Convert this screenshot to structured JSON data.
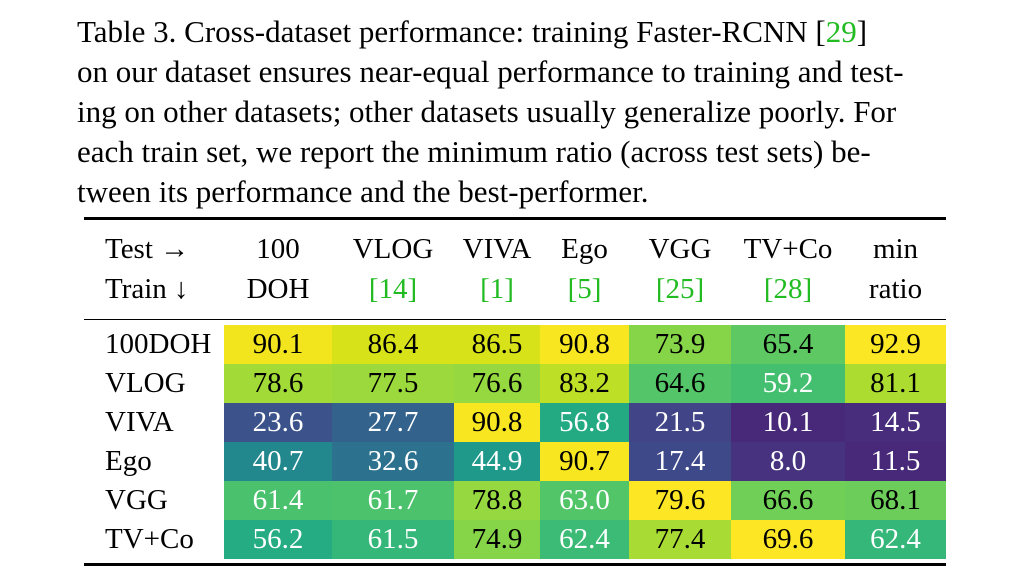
{
  "caption": {
    "lines": [
      [
        "Table 3. Cross-dataset performance:  training Faster-RCNN [",
        "29",
        "]"
      ],
      [
        "on our dataset ensures near-equal performance to training and test-"
      ],
      [
        "ing on other datasets; other datasets usually generalize poorly. For"
      ],
      [
        "each train set, we report the minimum ratio (across test sets) be-"
      ],
      [
        "tween its performance and the best-performer."
      ]
    ]
  },
  "table": {
    "corner_top": "Test →",
    "corner_bottom": "Train ↓",
    "columns": [
      {
        "top": "100",
        "bottom": "DOH",
        "ref": ""
      },
      {
        "top": "VLOG",
        "bottom": "",
        "ref": "14"
      },
      {
        "top": "VIVA",
        "bottom": "",
        "ref": "1"
      },
      {
        "top": "Ego",
        "bottom": "",
        "ref": "5"
      },
      {
        "top": "VGG",
        "bottom": "",
        "ref": "25"
      },
      {
        "top": "TV+Co",
        "bottom": "",
        "ref": "28"
      },
      {
        "top": "min",
        "bottom": "ratio",
        "ref": ""
      }
    ],
    "rows": [
      {
        "label": "100DOH",
        "values": [
          "90.1",
          "86.4",
          "86.5",
          "90.8",
          "73.9",
          "65.4",
          "92.9"
        ],
        "colors": [
          "#f2e51d",
          "#d8e219",
          "#d8e219",
          "#f7e620",
          "#86d549",
          "#5ec962",
          "#fbe723"
        ]
      },
      {
        "label": "VLOG",
        "values": [
          "78.6",
          "77.5",
          "76.6",
          "83.2",
          "64.6",
          "59.2",
          "81.1"
        ],
        "colors": [
          "#a2da37",
          "#9bd93c",
          "#95d840",
          "#bddf26",
          "#54c568",
          "#44bf70",
          "#addc30"
        ]
      },
      {
        "label": "VIVA",
        "values": [
          "23.6",
          "27.7",
          "90.8",
          "56.8",
          "21.5",
          "10.1",
          "14.5"
        ],
        "colors": [
          "#3b528b",
          "#33638d",
          "#f7e620",
          "#24aa83",
          "#414487",
          "#482878",
          "#472d7b"
        ]
      },
      {
        "label": "Ego",
        "values": [
          "40.7",
          "32.6",
          "44.9",
          "90.7",
          "17.4",
          "8.0",
          "11.5"
        ],
        "colors": [
          "#23888e",
          "#2c728e",
          "#1f9a8a",
          "#f7e620",
          "#3e4989",
          "#46327e",
          "#482878"
        ]
      },
      {
        "label": "VGG",
        "values": [
          "61.4",
          "61.7",
          "78.8",
          "63.0",
          "79.6",
          "66.6",
          "68.1"
        ],
        "colors": [
          "#4ac16d",
          "#4cc26c",
          "#95d840",
          "#52c569",
          "#fde725",
          "#70cf57",
          "#6ccd5a"
        ]
      },
      {
        "label": "TV+Co",
        "values": [
          "56.2",
          "61.5",
          "74.9",
          "62.4",
          "77.4",
          "69.6",
          "62.4"
        ],
        "colors": [
          "#25ac82",
          "#35b779",
          "#86d549",
          "#3bbb75",
          "#a8db34",
          "#fde725",
          "#35b779"
        ]
      }
    ],
    "text_light_threshold": "dark-bg uses white text"
  }
}
